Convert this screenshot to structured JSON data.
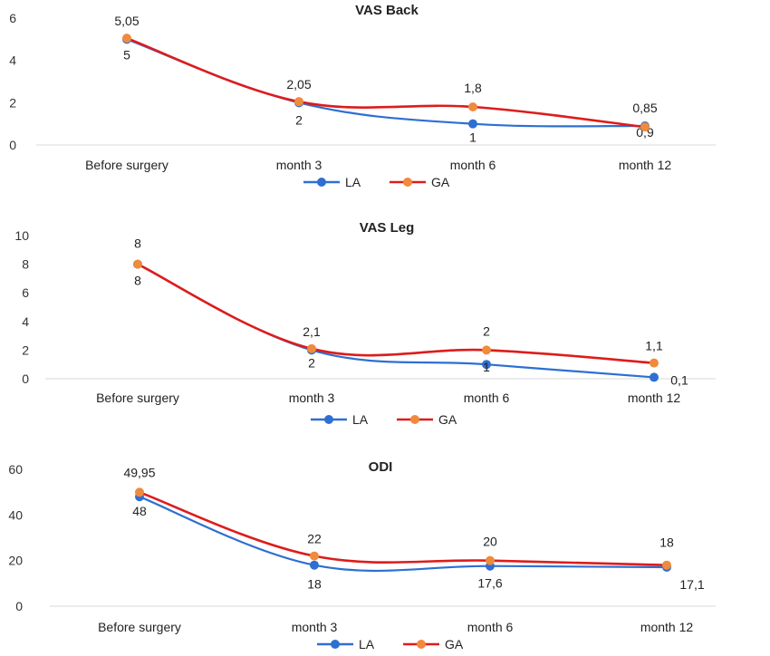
{
  "colors": {
    "LA": "#2e6fd1",
    "GA": "#dd1c1c",
    "GA_marker": "#f08a3c"
  },
  "chart_data": [
    {
      "type": "line",
      "title": "VAS Back",
      "categories": [
        "Before surgery",
        "month  3",
        "month 6",
        "month 12"
      ],
      "ylim": [
        0,
        6
      ],
      "yticks": [
        "0",
        "2",
        "4",
        "6"
      ],
      "legend": "bottom",
      "series": [
        {
          "name": "LA",
          "values": [
            5,
            2,
            1,
            0.9
          ],
          "labels": [
            "5",
            "2",
            "1",
            "0,9"
          ]
        },
        {
          "name": "GA",
          "values": [
            5.05,
            2.05,
            1.8,
            0.85
          ],
          "labels": [
            "5,05",
            "2,05",
            "1,8",
            "0,85"
          ]
        }
      ]
    },
    {
      "type": "line",
      "title": "VAS Leg",
      "categories": [
        "Before surgery",
        "month  3",
        "month 6",
        "month 12"
      ],
      "ylim": [
        0,
        10
      ],
      "yticks": [
        "0",
        "2",
        "4",
        "6",
        "8",
        "10"
      ],
      "legend": "bottom",
      "series": [
        {
          "name": "LA",
          "values": [
            8,
            2,
            1,
            0.1
          ],
          "labels": [
            "8",
            "2",
            "1",
            "0,1"
          ]
        },
        {
          "name": "GA",
          "values": [
            8,
            2.1,
            2,
            1.1
          ],
          "labels": [
            "8",
            "2,1",
            "2",
            "1,1"
          ]
        }
      ]
    },
    {
      "type": "line",
      "title": "ODI",
      "categories": [
        "Before surgery",
        "month  3",
        "month 6",
        "month 12"
      ],
      "ylim": [
        0,
        60
      ],
      "yticks": [
        "0",
        "20",
        "40",
        "60"
      ],
      "legend": "bottom",
      "series": [
        {
          "name": "LA",
          "values": [
            48,
            18,
            17.6,
            17.1
          ],
          "labels": [
            "48",
            "18",
            "17,6",
            "17,1"
          ]
        },
        {
          "name": "GA",
          "values": [
            49.95,
            22,
            20,
            18
          ],
          "labels": [
            "49,95",
            "22",
            "20",
            "18"
          ]
        }
      ]
    }
  ]
}
